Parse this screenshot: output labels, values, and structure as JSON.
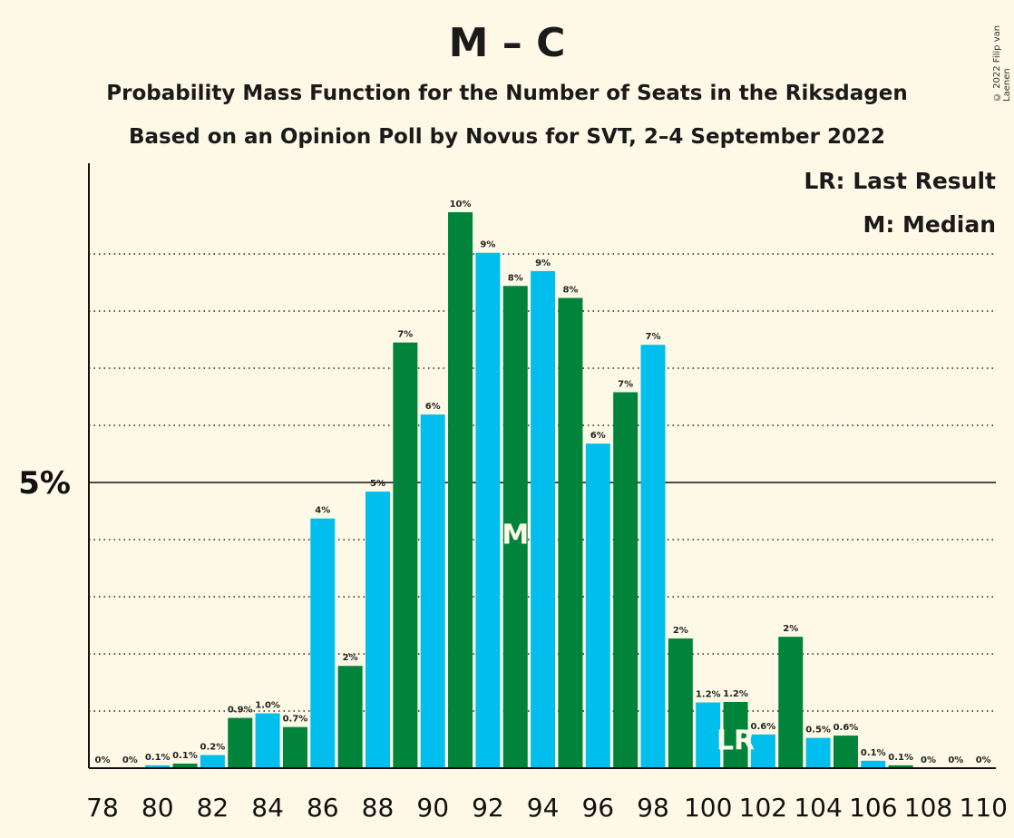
{
  "title": "M – C",
  "subtitle1": "Probability Mass Function for the Number of Seats in the Riksdagen",
  "subtitle2": "Based on an Opinion Poll by Novus for SVT, 2–4 September 2022",
  "copyright": "© 2022 Filip van Laenen",
  "legend": {
    "last_result": "LR: Last Result",
    "median": "M: Median"
  },
  "colors": {
    "blue": "#00BFEF",
    "green": "#00843C",
    "background": "#FEF9E6"
  },
  "chart_data": {
    "type": "bar",
    "title": "M – C",
    "x": [
      78,
      79,
      80,
      81,
      82,
      83,
      84,
      85,
      86,
      87,
      88,
      89,
      90,
      91,
      92,
      93,
      94,
      95,
      96,
      97,
      98,
      99,
      100,
      101,
      102,
      103,
      104,
      105,
      106,
      107,
      108,
      109,
      110
    ],
    "values": [
      0,
      0,
      0.05,
      0.08,
      0.23,
      0.88,
      0.96,
      0.72,
      4.37,
      1.79,
      4.84,
      7.45,
      6.19,
      9.73,
      9.02,
      8.44,
      8.7,
      8.23,
      5.68,
      6.58,
      7.41,
      2.27,
      1.15,
      1.16,
      0.59,
      2.3,
      0.53,
      0.57,
      0.13,
      0.05,
      0,
      0,
      0
    ],
    "value_labels": [
      "0%",
      "0%",
      "0.1%",
      "0.1%",
      "0.2%",
      "0.9%",
      "1.0%",
      "0.7%",
      "4%",
      "2%",
      "5%",
      "7%",
      "6%",
      "10%",
      "9%",
      "8%",
      "9%",
      "8%",
      "6%",
      "7%",
      "7%",
      "2%",
      "1.2%",
      "1.2%",
      "0.6%",
      "2%",
      "0.5%",
      "0.6%",
      "0.1%",
      "0.1%",
      "0%",
      "0%",
      "0%"
    ],
    "x_tick_labels": [
      "78",
      "80",
      "82",
      "84",
      "86",
      "88",
      "90",
      "92",
      "94",
      "96",
      "98",
      "100",
      "102",
      "104",
      "106",
      "108",
      "110"
    ],
    "x_tick_values": [
      78,
      80,
      82,
      84,
      86,
      88,
      90,
      92,
      94,
      96,
      98,
      100,
      102,
      104,
      106,
      108,
      110
    ],
    "y_tick_labels": [
      "5%"
    ],
    "y_tick_values": [
      5
    ],
    "ylim": [
      0,
      10.5
    ],
    "gridlines": [
      1,
      2,
      3,
      4,
      6,
      7,
      8,
      9
    ],
    "median_seat": 93,
    "median_label": "M",
    "last_result_seat": 101,
    "last_result_label": "LR"
  }
}
